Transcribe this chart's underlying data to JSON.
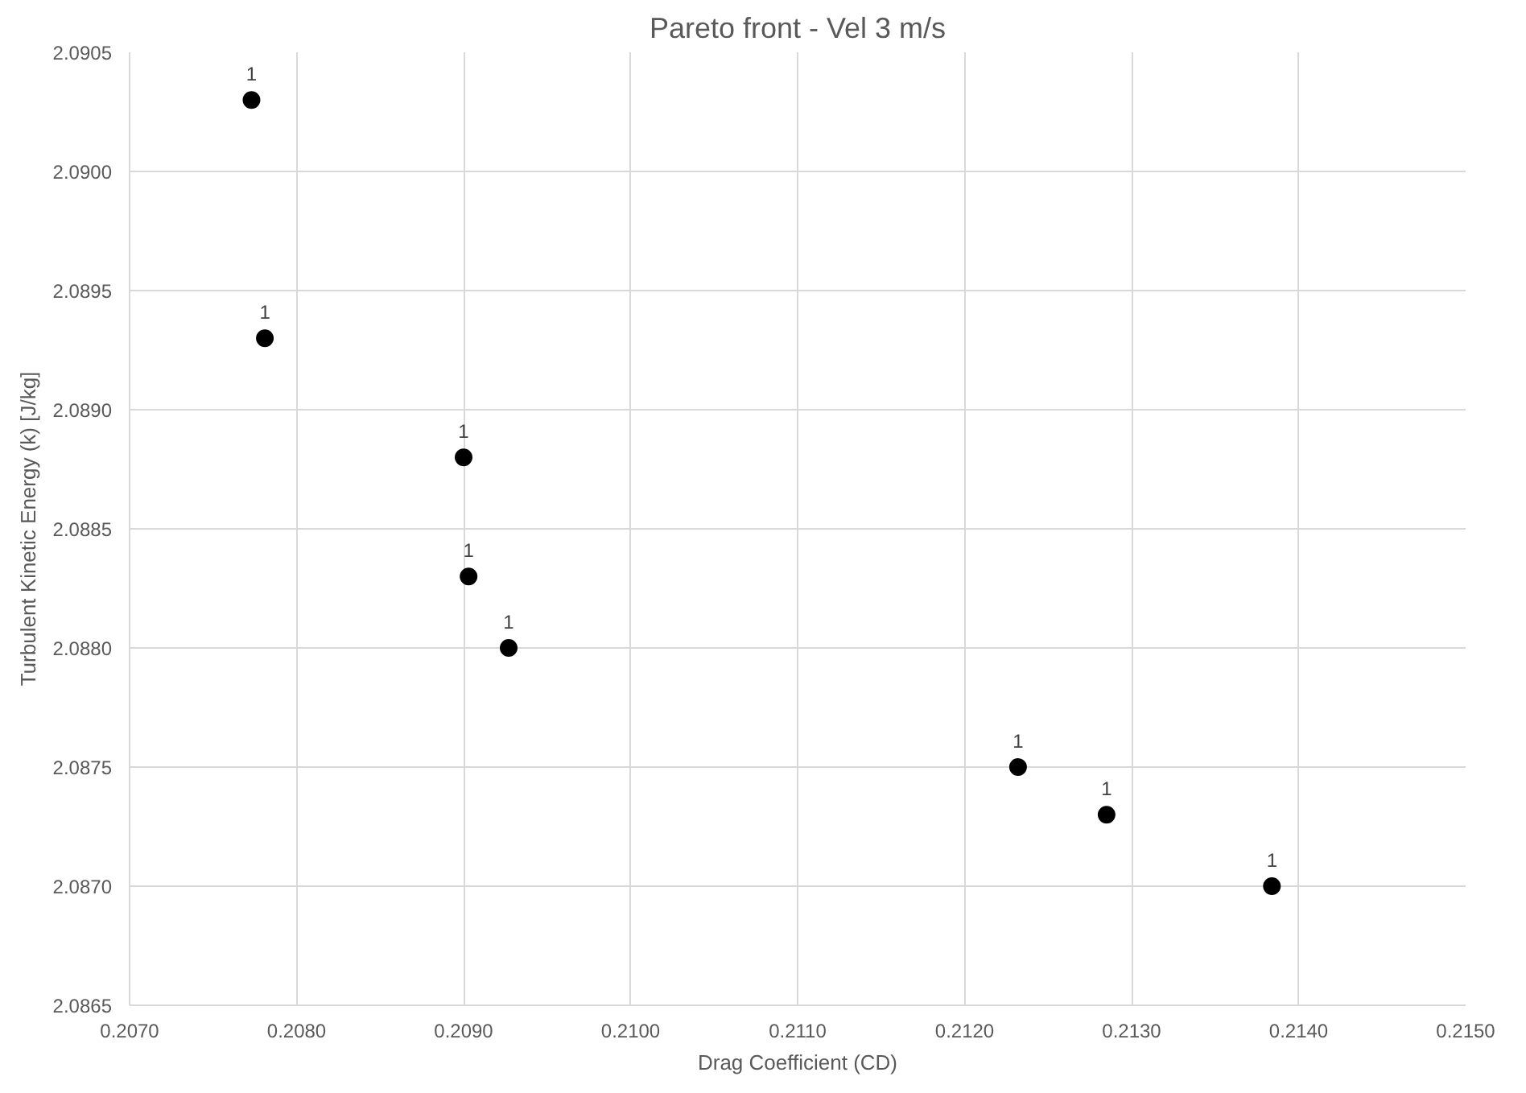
{
  "chart_data": {
    "type": "scatter",
    "title": "Pareto front - Vel 3 m/s",
    "xlabel": "Drag Coefficient (CD)",
    "ylabel": "Turbulent Kinetic Energy (k) [J/kg]",
    "x": [
      0.20773,
      0.20781,
      0.209,
      0.20903,
      0.20927,
      0.21232,
      0.21285,
      0.21384
    ],
    "series": [
      {
        "color": "#000000",
        "values": [
          2.0903,
          2.0893,
          2.0888,
          2.0883,
          2.088,
          2.0875,
          2.0873,
          2.087
        ]
      }
    ],
    "annotations": [
      {
        "text": "1",
        "x": 0.20773,
        "y": 2.0903
      },
      {
        "text": "1",
        "x": 0.20781,
        "y": 2.0893
      },
      {
        "text": "1",
        "x": 0.209,
        "y": 2.0888
      },
      {
        "text": "1",
        "x": 0.20903,
        "y": 2.0883
      },
      {
        "text": "1",
        "x": 0.20927,
        "y": 2.088
      },
      {
        "text": "1",
        "x": 0.21232,
        "y": 2.0875
      },
      {
        "text": "1",
        "x": 0.21285,
        "y": 2.0873
      },
      {
        "text": "1",
        "x": 0.21384,
        "y": 2.087
      }
    ],
    "xlim": [
      0.207,
      0.215
    ],
    "xticks": [
      {
        "value": 0.207,
        "label": "0.2070"
      },
      {
        "value": 0.208,
        "label": "0.2080"
      },
      {
        "value": 0.209,
        "label": "0.2090"
      },
      {
        "value": 0.21,
        "label": "0.2100"
      },
      {
        "value": 0.211,
        "label": "0.2110"
      },
      {
        "value": 0.212,
        "label": "0.2120"
      },
      {
        "value": 0.213,
        "label": "0.2130"
      },
      {
        "value": 0.214,
        "label": "0.2140"
      },
      {
        "value": 0.215,
        "label": "0.2150"
      }
    ],
    "ylim": [
      2.0865,
      2.0905
    ],
    "yticks": [
      {
        "value": 2.0865,
        "label": "2.0865"
      },
      {
        "value": 2.087,
        "label": "2.0870"
      },
      {
        "value": 2.0875,
        "label": "2.0875"
      },
      {
        "value": 2.088,
        "label": "2.0880"
      },
      {
        "value": 2.0885,
        "label": "2.0885"
      },
      {
        "value": 2.089,
        "label": "2.0890"
      },
      {
        "value": 2.0895,
        "label": "2.0895"
      },
      {
        "value": 2.09,
        "label": "2.0900"
      },
      {
        "value": 2.0905,
        "label": "2.0905"
      }
    ],
    "grid": true,
    "marker": "circle"
  }
}
